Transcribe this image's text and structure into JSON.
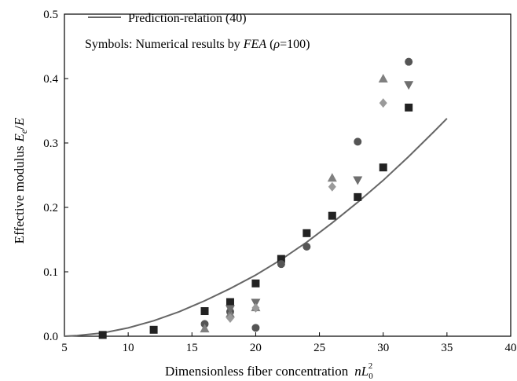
{
  "chart_data": {
    "type": "scatter",
    "xlabel": "Dimensionless fiber concentration",
    "xlabel_math": {
      "n": "n",
      "L": "L",
      "sub": "0",
      "sup": "2"
    },
    "ylabel": "Effective modulus",
    "ylabel_math": {
      "E": "E",
      "sub": "e",
      "slash": "/"
    },
    "xlim": [
      5,
      40
    ],
    "ylim": [
      0,
      0.5
    ],
    "xticks": [
      5,
      10,
      15,
      20,
      25,
      30,
      35,
      40
    ],
    "yticks": [
      0.0,
      0.1,
      0.2,
      0.3,
      0.4,
      0.5
    ],
    "xtick_labels": [
      "5",
      "10",
      "15",
      "20",
      "25",
      "30",
      "35",
      "40"
    ],
    "ytick_labels": [
      "0.0",
      "0.1",
      "0.2",
      "0.3",
      "0.4",
      "0.5"
    ],
    "grid": false,
    "legend": {
      "placement": "top-left",
      "line_label": "Prediction-relation (40)",
      "symbols_prefix": "Symbols: Numerical results by ",
      "symbols_fea": "FEA",
      "symbols_open": " (",
      "symbols_rho": "ρ",
      "symbols_close": "=100)"
    },
    "series": [
      {
        "kind": "line",
        "color": "#666666",
        "x": [
          5,
          6,
          8,
          10,
          12,
          14,
          16,
          18,
          20,
          22,
          24,
          26,
          28,
          30,
          32,
          34,
          35
        ],
        "y": [
          0.0,
          0.001,
          0.005,
          0.013,
          0.024,
          0.038,
          0.055,
          0.074,
          0.095,
          0.119,
          0.146,
          0.176,
          0.208,
          0.242,
          0.279,
          0.318,
          0.338
        ]
      },
      {
        "kind": "scatter",
        "marker": "square",
        "color": "#222222",
        "x": [
          8,
          12,
          16,
          18,
          20,
          22,
          24,
          26,
          28,
          30,
          32
        ],
        "y": [
          0.002,
          0.01,
          0.039,
          0.053,
          0.082,
          0.12,
          0.16,
          0.187,
          0.216,
          0.262,
          0.355
        ]
      },
      {
        "kind": "scatter",
        "marker": "circle",
        "color": "#555555",
        "x": [
          16,
          18,
          20,
          22,
          24,
          28,
          32
        ],
        "y": [
          0.019,
          0.038,
          0.013,
          0.112,
          0.139,
          0.302,
          0.426
        ]
      },
      {
        "kind": "scatter",
        "marker": "triangle-up",
        "color": "#808080",
        "x": [
          16,
          18,
          20,
          26,
          30
        ],
        "y": [
          0.012,
          0.035,
          0.045,
          0.246,
          0.4
        ]
      },
      {
        "kind": "scatter",
        "marker": "triangle-down",
        "color": "#6e6e6e",
        "x": [
          18,
          20,
          28,
          32
        ],
        "y": [
          0.042,
          0.052,
          0.242,
          0.39
        ]
      },
      {
        "kind": "scatter",
        "marker": "diamond",
        "color": "#9a9a9a",
        "x": [
          18,
          20,
          26,
          30
        ],
        "y": [
          0.028,
          0.044,
          0.232,
          0.362
        ]
      }
    ]
  }
}
